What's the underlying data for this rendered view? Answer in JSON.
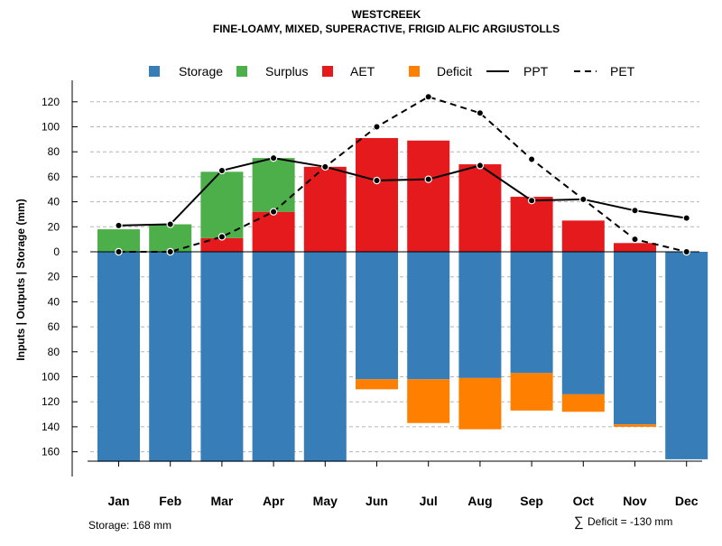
{
  "chart_data": {
    "type": "bar",
    "title": "WESTCREEK",
    "subtitle": "FINE-LOAMY, MIXED, SUPERACTIVE, FRIGID ALFIC ARGIUSTOLLS",
    "xlabel": "",
    "ylabel": "Inputs | Outputs | Storage     (mm)",
    "categories": [
      "Jan",
      "Feb",
      "Mar",
      "Apr",
      "May",
      "Jun",
      "Jul",
      "Aug",
      "Sep",
      "Oct",
      "Nov",
      "Dec"
    ],
    "ylim": [
      -168,
      130
    ],
    "yticks": [
      120,
      100,
      80,
      60,
      40,
      20,
      0,
      -20,
      -40,
      -60,
      -80,
      -100,
      -120,
      -140,
      -160
    ],
    "ytick_labels": [
      "120",
      "100",
      "80",
      "60",
      "40",
      "20",
      "0",
      "20",
      "40",
      "60",
      "80",
      "100",
      "120",
      "140",
      "160"
    ],
    "grid": true,
    "legend_position": "top",
    "series": [
      {
        "name": "Storage",
        "color": "#377EB8",
        "kind": "bar",
        "values": [
          -168,
          -168,
          -168,
          -168,
          -168,
          -102,
          -102,
          -101,
          -97,
          -114,
          -138,
          -166
        ]
      },
      {
        "name": "Surplus",
        "color": "#4DAF4A",
        "kind": "bar",
        "values": [
          18,
          22,
          53,
          43,
          0,
          0,
          0,
          0,
          0,
          0,
          0,
          0
        ]
      },
      {
        "name": "AET",
        "color": "#E41A1C",
        "kind": "bar",
        "values": [
          0,
          0,
          11,
          32,
          68,
          91,
          89,
          70,
          44,
          25,
          7,
          0
        ]
      },
      {
        "name": "Deficit",
        "color": "#FF7F00",
        "kind": "bar",
        "values": [
          0,
          0,
          0,
          0,
          0,
          -8,
          -35,
          -41,
          -30,
          -14,
          -2,
          0
        ]
      },
      {
        "name": "PPT",
        "color": "#000000",
        "kind": "line",
        "style": "solid",
        "values": [
          21,
          22,
          65,
          75,
          68,
          57,
          58,
          69,
          41,
          42,
          33,
          27
        ]
      },
      {
        "name": "PET",
        "color": "#000000",
        "kind": "line",
        "style": "dashed",
        "values": [
          0,
          0,
          12,
          32,
          68,
          100,
          124,
          111,
          74,
          42,
          10,
          0
        ]
      }
    ],
    "annotations": {
      "storage": "Storage: 168 mm",
      "deficit_symbol": "∑",
      "deficit": "Deficit = -130 mm"
    }
  }
}
